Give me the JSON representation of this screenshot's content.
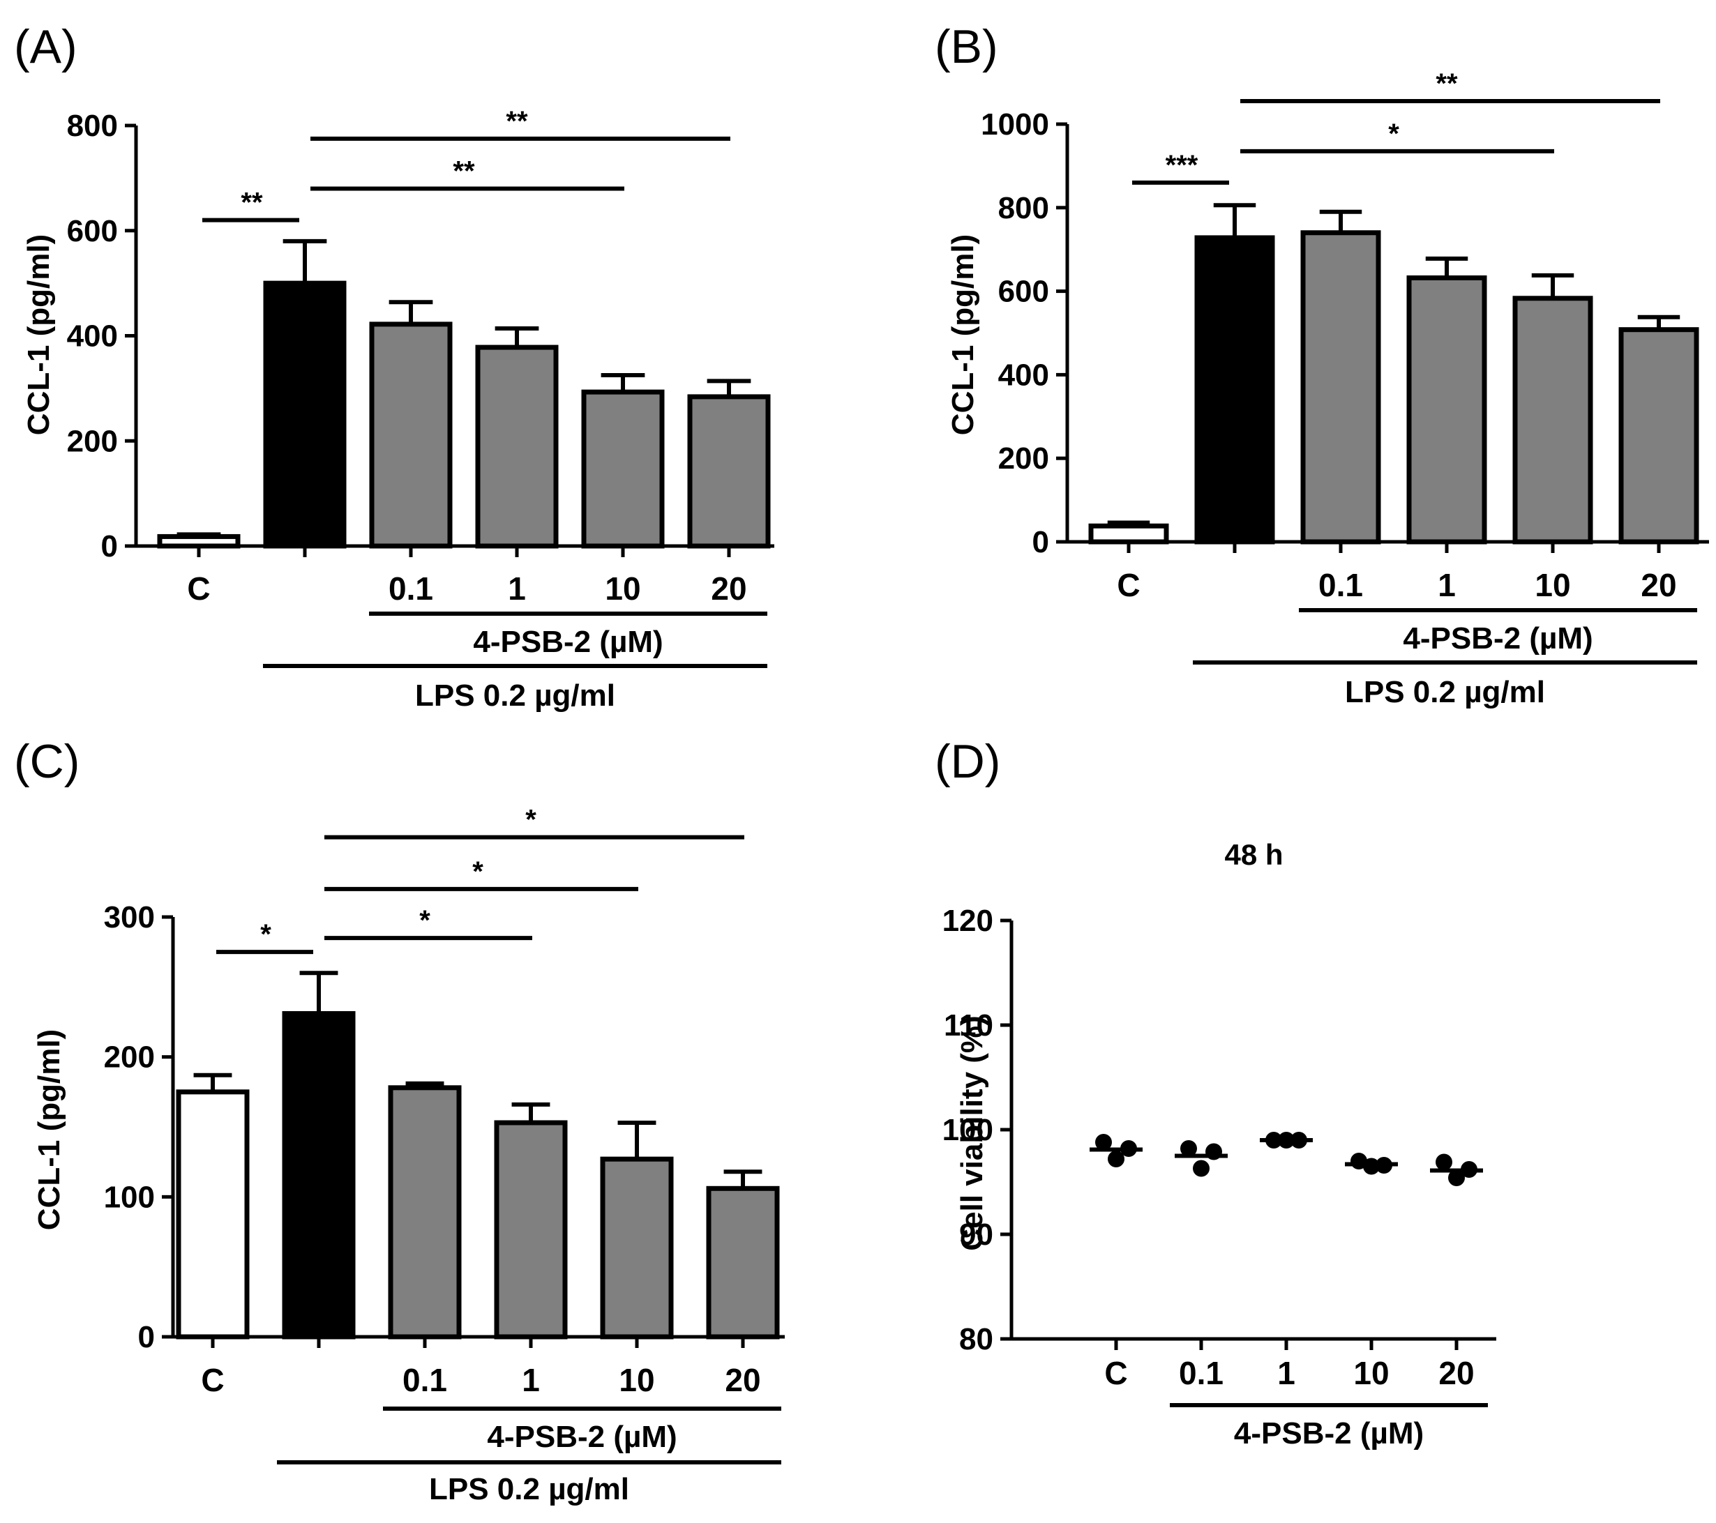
{
  "colors": {
    "control": "#ffffff",
    "lps": "#000000",
    "treatment": "#808080",
    "axis": "#000000"
  },
  "chart_data": [
    {
      "panel": "(A)",
      "type": "bar",
      "ylabel": "CCL-1 (pg/ml)",
      "ylim": [
        0,
        800
      ],
      "yticks": [
        0,
        200,
        400,
        600,
        800
      ],
      "categories": [
        "C",
        "",
        "0.1",
        "1",
        "10",
        "20"
      ],
      "values": [
        18,
        500,
        422,
        378,
        293,
        284
      ],
      "errors": [
        4,
        80,
        42,
        36,
        32,
        30
      ],
      "fills": [
        "control",
        "lps",
        "treatment",
        "treatment",
        "treatment",
        "treatment"
      ],
      "groups": [
        {
          "label": "4-PSB-2 (µM)",
          "from": 2,
          "to": 5
        },
        {
          "label": "LPS 0.2 µg/ml",
          "from": 1,
          "to": 5
        }
      ],
      "significance": [
        {
          "label": "**",
          "from": 0,
          "to": 1,
          "y": 620
        },
        {
          "label": "**",
          "from": 1,
          "to": 4,
          "y": 680
        },
        {
          "label": "**",
          "from": 1,
          "to": 5,
          "y": 775
        }
      ]
    },
    {
      "panel": "(B)",
      "type": "bar",
      "ylabel": "CCL-1 (pg/ml)",
      "ylim": [
        0,
        1000
      ],
      "yticks": [
        0,
        200,
        400,
        600,
        800,
        1000
      ],
      "categories": [
        "C",
        "",
        "0.1",
        "1",
        "10",
        "20"
      ],
      "values": [
        38,
        728,
        740,
        632,
        583,
        508
      ],
      "errors": [
        8,
        78,
        50,
        46,
        55,
        30
      ],
      "fills": [
        "control",
        "lps",
        "treatment",
        "treatment",
        "treatment",
        "treatment"
      ],
      "groups": [
        {
          "label": "4-PSB-2 (µM)",
          "from": 2,
          "to": 5
        },
        {
          "label": "LPS 0.2 µg/ml",
          "from": 1,
          "to": 5
        }
      ],
      "significance": [
        {
          "label": "***",
          "from": 0,
          "to": 1,
          "y": 860
        },
        {
          "label": "*",
          "from": 1,
          "to": 4,
          "y": 935
        },
        {
          "label": "**",
          "from": 1,
          "to": 5,
          "y": 1055
        }
      ]
    },
    {
      "panel": "(C)",
      "type": "bar",
      "ylabel": "CCL-1 (pg/ml)",
      "ylim": [
        0,
        300
      ],
      "yticks": [
        0,
        100,
        200,
        300
      ],
      "categories": [
        "C",
        "",
        "0.1",
        "1",
        "10",
        "20"
      ],
      "values": [
        175,
        231,
        178,
        153,
        127,
        106
      ],
      "errors": [
        12,
        29,
        3,
        13,
        26,
        12
      ],
      "fills": [
        "control",
        "lps",
        "treatment",
        "treatment",
        "treatment",
        "treatment"
      ],
      "groups": [
        {
          "label": "4-PSB-2 (µM)",
          "from": 2,
          "to": 5
        },
        {
          "label": "LPS 0.2 µg/ml",
          "from": 1,
          "to": 5
        }
      ],
      "significance": [
        {
          "label": "*",
          "from": 0,
          "to": 1,
          "y": 275
        },
        {
          "label": "*",
          "from": 1,
          "to": 3,
          "y": 285
        },
        {
          "label": "*",
          "from": 1,
          "to": 4,
          "y": 320
        },
        {
          "label": "*",
          "from": 1,
          "to": 5,
          "y": 357
        }
      ]
    },
    {
      "panel": "(D)",
      "type": "scatter",
      "title": "48 h",
      "ylabel": "Cell viability (%)",
      "ylim": [
        80,
        120
      ],
      "yticks": [
        80,
        90,
        100,
        110,
        120
      ],
      "categories": [
        "C",
        "0.1",
        "1",
        "10",
        "20"
      ],
      "means": [
        98.1,
        97.5,
        99.0,
        96.7,
        96.1
      ],
      "points": [
        [
          98.8,
          98.2,
          97.2
        ],
        [
          98.2,
          97.9,
          96.3
        ],
        [
          99.0,
          99.0,
          99.0
        ],
        [
          97.0,
          96.6,
          96.5
        ],
        [
          96.9,
          96.2,
          95.4
        ]
      ],
      "groups": [
        {
          "label": "4-PSB-2 (µM)",
          "from": 1,
          "to": 4
        }
      ]
    }
  ]
}
